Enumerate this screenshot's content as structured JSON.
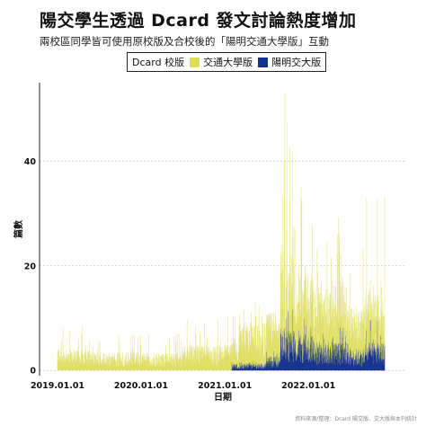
{
  "header": {
    "title": "陽交學生透過 Dcard 發文討論熱度增加",
    "subtitle": "兩校區同學皆可使用原校版及合校後的「陽明交通大學版」互動"
  },
  "legend": {
    "title": "Dcard 校版",
    "items": [
      {
        "label": "交通大學版",
        "color": "#dedd5c"
      },
      {
        "label": "陽明交大版",
        "color": "#15318f"
      }
    ]
  },
  "source": "資料來源/整理：Dcard 陽交版、交大版與本刊統計",
  "chart_data": {
    "type": "bar",
    "stacked": true,
    "title": "陽交學生透過 Dcard 發文討論熱度增加",
    "subtitle": "兩校區同學皆可使用原校版及合校後的「陽明交通大學版」互動",
    "xlabel": "日期",
    "ylabel": "篇數",
    "x_ticks": [
      "2019.01.01",
      "2020.01.01",
      "2021.01.01",
      "2022.01.01"
    ],
    "y_ticks": [
      0,
      20,
      40
    ],
    "xlim": [
      "2019-01-01",
      "2022-11-30"
    ],
    "ylim": [
      -1,
      55
    ],
    "grid": "horizontal dotted",
    "legend_position": "top",
    "periods": [
      {
        "start": "2019-01-01",
        "end": "2019-06-30",
        "series": "交通大學版",
        "typical": 3,
        "max": 9
      },
      {
        "start": "2019-07-01",
        "end": "2019-12-31",
        "series": "交通大學版",
        "typical": 2.5,
        "max": 7
      },
      {
        "start": "2020-01-01",
        "end": "2020-06-30",
        "series": "交通大學版",
        "typical": 2.5,
        "max": 7
      },
      {
        "start": "2020-07-01",
        "end": "2020-12-31",
        "series": "交通大學版",
        "typical": 3.5,
        "max": 10
      },
      {
        "start": "2021-01-01",
        "end": "2021-02-28",
        "series": "交通大學版",
        "typical": 4,
        "max": 12
      },
      {
        "start": "2021-02-01",
        "end": "2021-06-30",
        "series": "陽明交大版",
        "typical": 1,
        "max": 2
      },
      {
        "start": "2021-03-01",
        "end": "2021-06-30",
        "series": "交通大學版",
        "typical": 6,
        "max": 13
      },
      {
        "start": "2021-07-01",
        "end": "2021-08-31",
        "series": "陽明交大版",
        "typical": 2,
        "max": 4
      },
      {
        "start": "2021-07-01",
        "end": "2021-08-31",
        "series": "交通大學版",
        "typical": 7,
        "max": 14
      },
      {
        "start": "2021-09-01",
        "end": "2021-10-31",
        "series": "陽明交大版",
        "typical": 6,
        "max": 12
      },
      {
        "start": "2021-09-01",
        "end": "2021-10-31",
        "series": "交通大學版",
        "typical": 13,
        "max": 41
      },
      {
        "start": "2021-11-01",
        "end": "2022-01-31",
        "series": "陽明交大版",
        "typical": 5,
        "max": 10
      },
      {
        "start": "2021-11-01",
        "end": "2022-01-31",
        "series": "交通大學版",
        "typical": 10,
        "max": 30
      },
      {
        "start": "2022-02-01",
        "end": "2022-06-30",
        "series": "陽明交大版",
        "typical": 4,
        "max": 9
      },
      {
        "start": "2022-02-01",
        "end": "2022-06-30",
        "series": "交通大學版",
        "typical": 9,
        "max": 28
      },
      {
        "start": "2022-07-01",
        "end": "2022-08-31",
        "series": "陽明交大版",
        "typical": 3,
        "max": 6
      },
      {
        "start": "2022-07-01",
        "end": "2022-08-31",
        "series": "交通大學版",
        "typical": 7,
        "max": 20
      },
      {
        "start": "2022-09-01",
        "end": "2022-11-30",
        "series": "陽明交大版",
        "typical": 4,
        "max": 10
      },
      {
        "start": "2022-09-01",
        "end": "2022-11-30",
        "series": "交通大學版",
        "typical": 8,
        "max": 38
      }
    ],
    "peak": {
      "date": "2021-09-20",
      "value": 53
    }
  }
}
